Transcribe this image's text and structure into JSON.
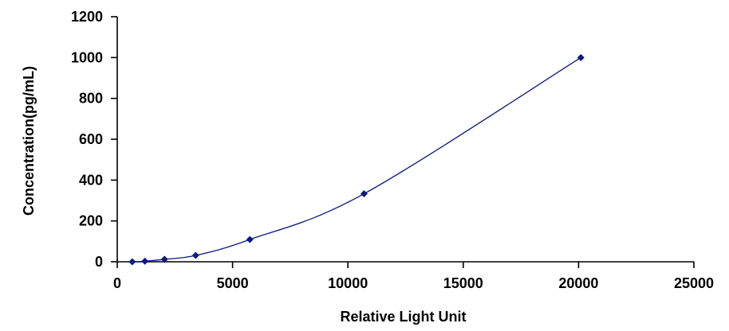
{
  "chart_data": {
    "type": "line",
    "xlabel": "Relative Light Unit",
    "ylabel": "Concentration(pg/mL)",
    "xlim": [
      0,
      25000
    ],
    "ylim": [
      0,
      1200
    ],
    "x_ticks": [
      0,
      5000,
      10000,
      15000,
      20000,
      25000
    ],
    "y_ticks": [
      0,
      200,
      400,
      600,
      800,
      1000,
      1200
    ],
    "x_tick_labels": [
      "0",
      "5000",
      "10000",
      "15000",
      "20000",
      "25000"
    ],
    "y_tick_labels": [
      "0",
      "200",
      "400",
      "600",
      "800",
      "1000",
      "1200"
    ],
    "grid": false,
    "series": [
      {
        "x": [
          650,
          1200,
          2050,
          3400,
          5750,
          10700,
          20100
        ],
        "y": [
          0,
          3,
          12,
          31,
          109,
          333,
          1000
        ],
        "marker": "diamond",
        "color": "#0c1a80"
      }
    ]
  }
}
